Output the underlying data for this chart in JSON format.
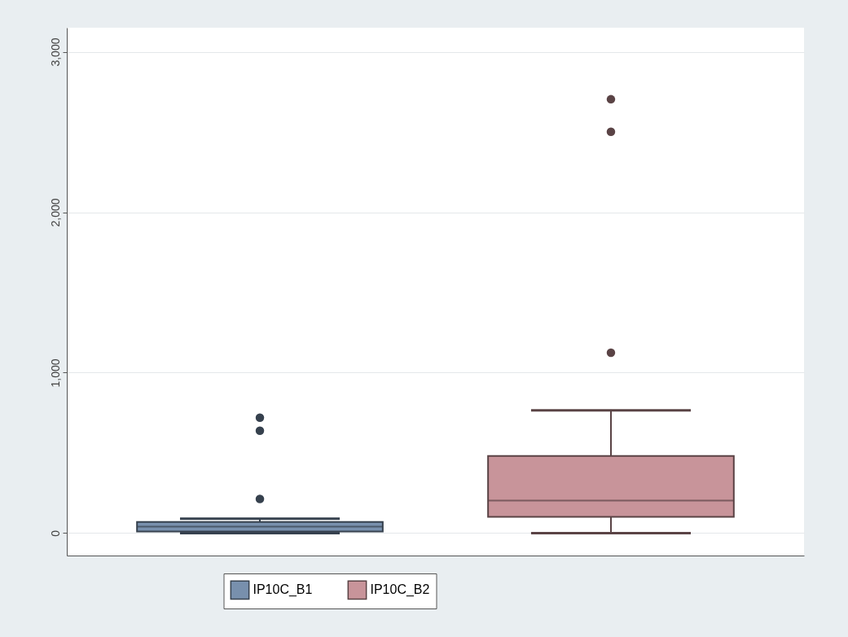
{
  "chart_data": {
    "type": "box",
    "categories": [
      null
    ],
    "ylim": [
      -140,
      3150
    ],
    "yticks": [
      {
        "value": 0,
        "label": "0"
      },
      {
        "value": 1000,
        "label": "1,000"
      },
      {
        "value": 2000,
        "label": "2,000"
      },
      {
        "value": 3000,
        "label": "3,000"
      }
    ],
    "grid": "y",
    "legend": "bottom",
    "marker": "circle",
    "series": [
      {
        "name": "IP10C_B1",
        "color": "#7890ad",
        "boxes": [
          {
            "low": 0,
            "q1": 10,
            "median": 40,
            "q3": 70,
            "high": 90,
            "outliers": [
              213,
              638,
              719
            ]
          }
        ]
      },
      {
        "name": "IP10C_B2",
        "color": "#c8949a",
        "boxes": [
          {
            "low": 0,
            "q1": 101,
            "median": 203,
            "q3": 481,
            "high": 765,
            "outliers": [
              1124,
              2501,
              2704
            ]
          }
        ]
      }
    ]
  }
}
